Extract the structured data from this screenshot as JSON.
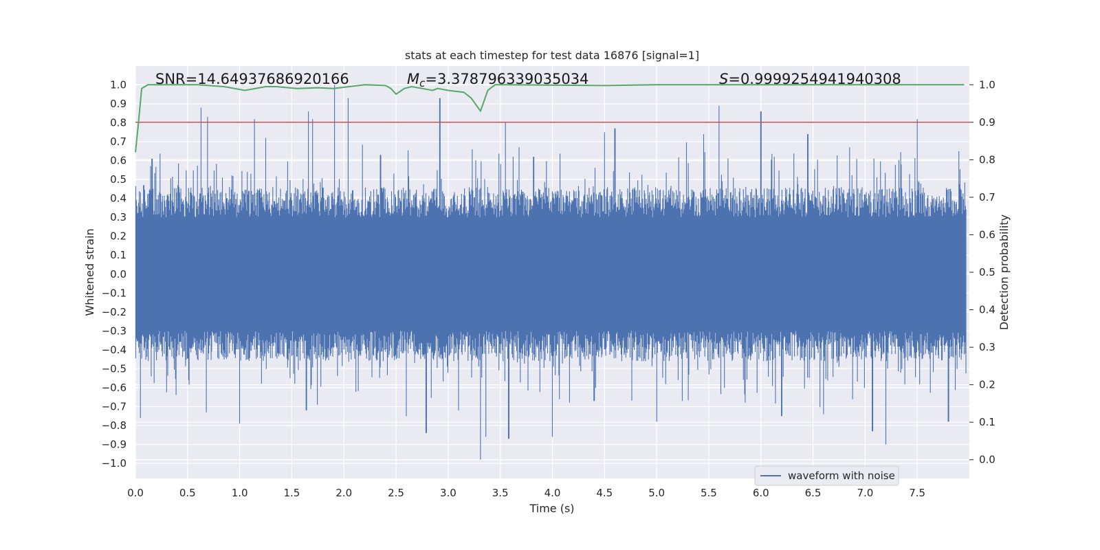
{
  "chart_data": {
    "type": "line",
    "title": "stats at each timestep for test data 16876 [signal=1]",
    "xlabel": "Time (s)",
    "ylabel": "Whitened strain",
    "y2label": "Detection probability",
    "xlim": [
      0.0,
      8.0
    ],
    "ylim": [
      -1.08,
      1.1
    ],
    "y2lim": [
      -0.05,
      1.05
    ],
    "xticks": [
      "0.0",
      "0.5",
      "1.0",
      "1.5",
      "2.0",
      "2.5",
      "3.0",
      "3.5",
      "4.0",
      "4.5",
      "5.0",
      "5.5",
      "6.0",
      "6.5",
      "7.0",
      "7.5"
    ],
    "yticks": [
      "1.0",
      "0.9",
      "0.8",
      "0.7",
      "0.6",
      "0.5",
      "0.4",
      "0.3",
      "0.2",
      "0.1",
      "0.0",
      "−0.1",
      "−0.2",
      "−0.3",
      "−0.4",
      "−0.5",
      "−0.6",
      "−0.7",
      "−0.8",
      "−0.9",
      "−1.0"
    ],
    "y2ticks": [
      "1.0",
      "0.9",
      "0.8",
      "0.7",
      "0.6",
      "0.5",
      "0.4",
      "0.3",
      "0.2",
      "0.1",
      "0.0"
    ],
    "annotations": {
      "snr": "SNR=14.64937686920166",
      "mc_symbol": "M",
      "mc_subscript": "c",
      "mc_value": "=3.378796339035034",
      "s_symbol": "S",
      "s_value": "=0.9999254941940308"
    },
    "threshold": {
      "value": 0.9,
      "axis": "right",
      "color": "#c44e52"
    },
    "series": [
      {
        "name": "waveform with noise",
        "axis": "left",
        "color": "#4c72b0",
        "envelope_typical": 0.3,
        "peaks_positive": [
          [
            0.08,
            0.47
          ],
          [
            0.16,
            0.61
          ],
          [
            0.63,
            0.88
          ],
          [
            0.69,
            0.83
          ],
          [
            1.14,
            0.82
          ],
          [
            1.25,
            0.72
          ],
          [
            1.66,
            0.86
          ],
          [
            1.7,
            0.82
          ],
          [
            1.91,
            1.0
          ],
          [
            2.04,
            0.93
          ],
          [
            2.35,
            0.63
          ],
          [
            2.92,
            0.93
          ],
          [
            3.23,
            0.66
          ],
          [
            3.55,
            0.8
          ],
          [
            3.82,
            0.62
          ],
          [
            4.5,
            0.75
          ],
          [
            4.6,
            0.77
          ],
          [
            5.6,
            0.89
          ],
          [
            5.45,
            0.74
          ],
          [
            6.0,
            0.86
          ],
          [
            6.45,
            0.74
          ],
          [
            6.85,
            0.67
          ],
          [
            7.5,
            0.82
          ],
          [
            7.9,
            0.65
          ]
        ],
        "peaks_negative": [
          [
            0.05,
            -0.76
          ],
          [
            0.68,
            -0.73
          ],
          [
            1.0,
            -0.79
          ],
          [
            1.64,
            -0.72
          ],
          [
            2.6,
            -0.75
          ],
          [
            2.79,
            -0.84
          ],
          [
            3.1,
            -0.72
          ],
          [
            3.31,
            -0.98
          ],
          [
            3.36,
            -0.86
          ],
          [
            3.58,
            -0.87
          ],
          [
            4.0,
            -0.86
          ],
          [
            4.4,
            -0.67
          ],
          [
            5.0,
            -0.78
          ],
          [
            6.2,
            -0.75
          ],
          [
            6.6,
            -0.74
          ],
          [
            7.07,
            -0.83
          ],
          [
            7.2,
            -0.9
          ],
          [
            7.8,
            -0.78
          ]
        ]
      },
      {
        "name": "detection probability",
        "axis": "right",
        "color": "#55a868",
        "x": [
          0.0,
          0.03,
          0.06,
          0.12,
          0.2,
          0.6,
          0.85,
          0.95,
          1.05,
          1.25,
          1.35,
          1.55,
          1.75,
          1.9,
          2.2,
          2.4,
          2.45,
          2.5,
          2.58,
          2.65,
          2.75,
          2.85,
          2.9,
          3.0,
          3.15,
          3.22,
          3.31,
          3.38,
          3.45,
          3.55,
          4.5,
          5.0,
          7.95
        ],
        "y": [
          0.82,
          0.9,
          0.99,
          1.0,
          1.0,
          1.0,
          0.995,
          0.99,
          0.985,
          0.995,
          0.995,
          0.99,
          0.992,
          0.99,
          1.0,
          0.998,
          0.99,
          0.975,
          0.99,
          0.995,
          0.99,
          0.985,
          0.99,
          0.985,
          0.98,
          0.965,
          0.93,
          0.985,
          1.0,
          1.0,
          0.998,
          1.0,
          1.0
        ]
      }
    ],
    "legend": {
      "label": "waveform with noise",
      "position": "lower-right"
    }
  }
}
